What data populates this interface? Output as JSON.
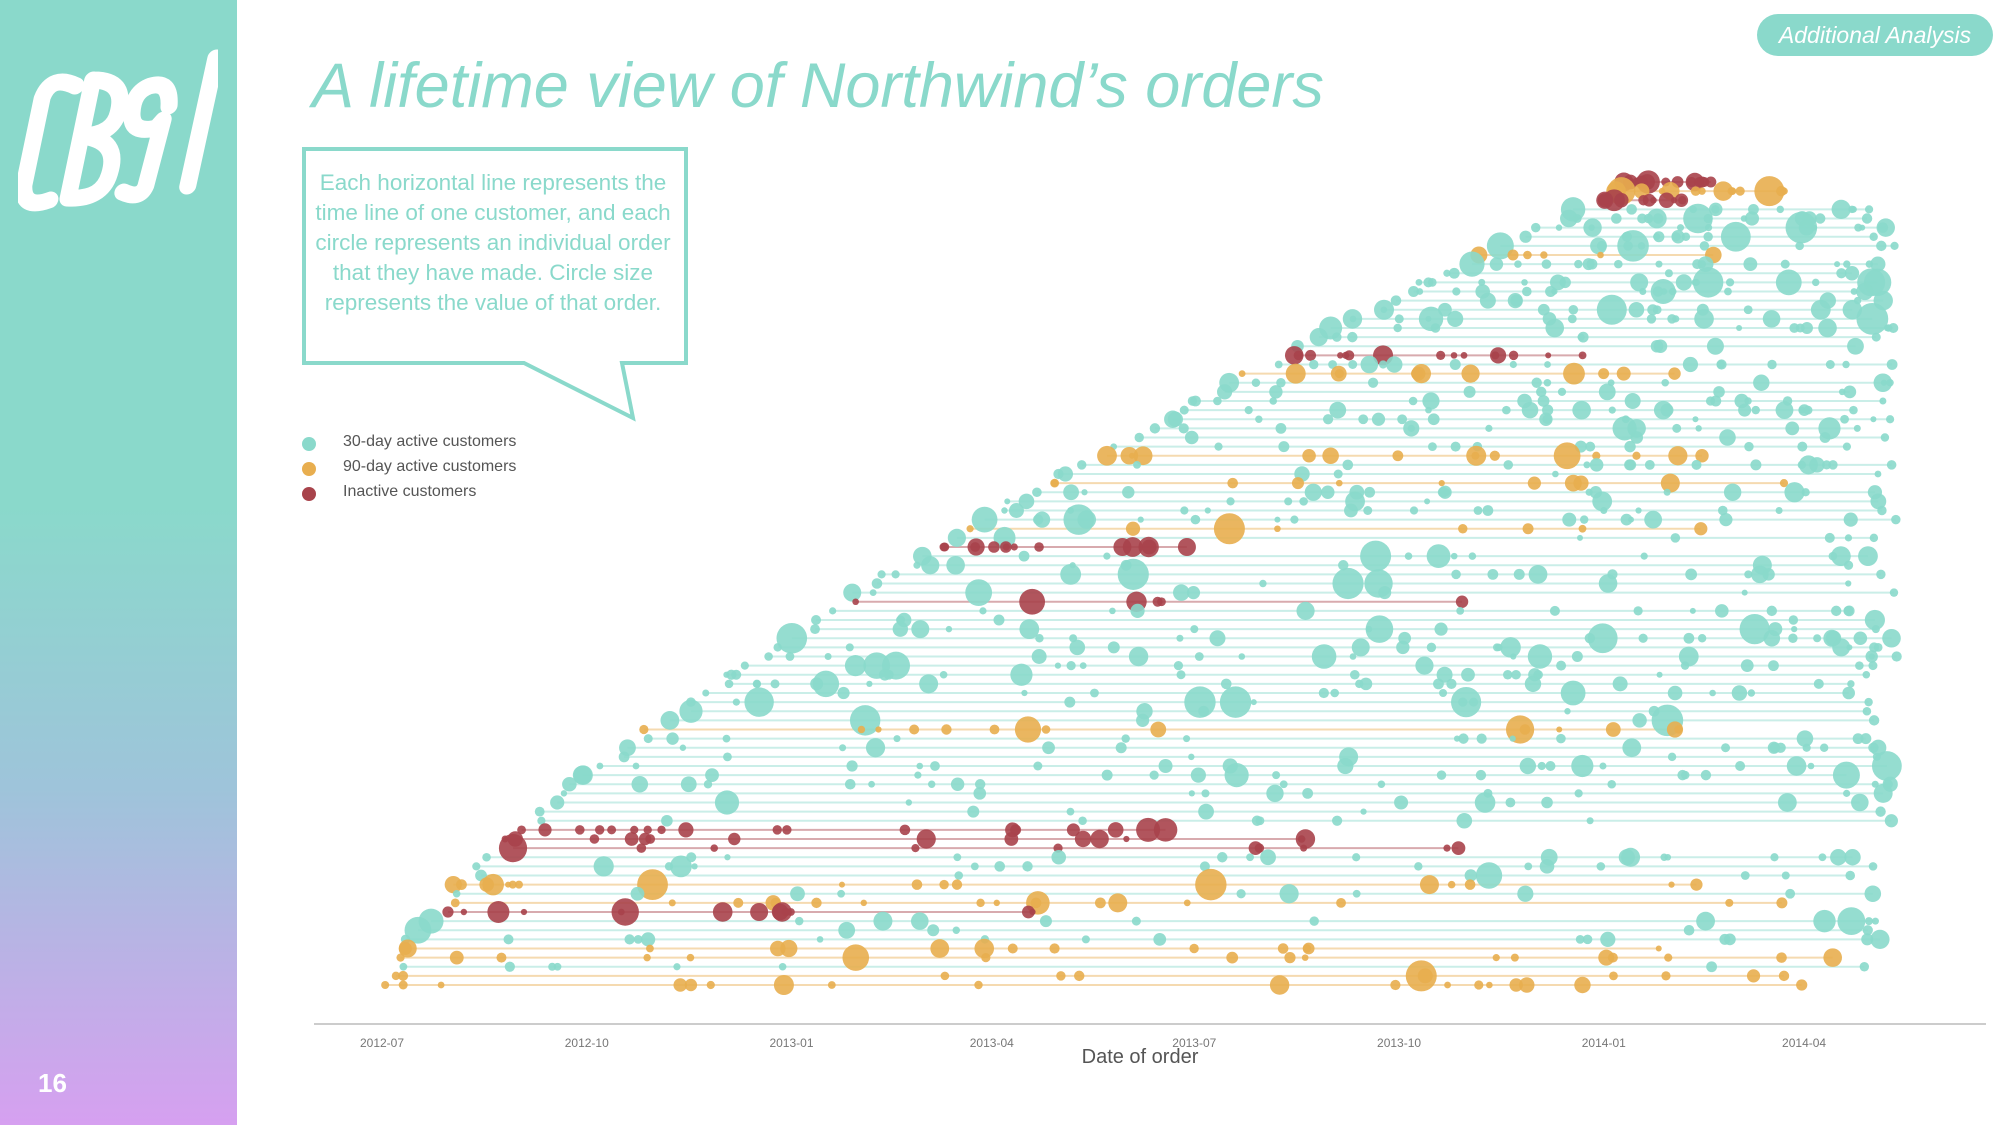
{
  "slide": {
    "logo_text": "CB91",
    "page_number": "16",
    "badge": "Additional Analysis",
    "title": "A lifetime view of Northwind’s orders",
    "callout": "Each horizontal line represents the time line of one customer, and each circle represents an individual order that they have made. Circle size represents the value of that order."
  },
  "colors": {
    "accent": "#8ad9cb",
    "active_30": "#8ad9cb",
    "active_90": "#e8ae4f",
    "inactive": "#a8434b",
    "axis": "#cccccc",
    "text": "#555555"
  },
  "chart_data": {
    "type": "scatter",
    "title": "",
    "xlabel": "Date of order",
    "ylabel": "",
    "x_axis": "date",
    "x_ticks": [
      "2012-07",
      "2012-10",
      "2013-01",
      "2013-04",
      "2013-07",
      "2013-10",
      "2014-01",
      "2014-04"
    ],
    "xlim": [
      "2012-07-01",
      "2014-05-15"
    ],
    "legend": {
      "placement": "left",
      "entries": [
        {
          "label": "30-day active customers",
          "status": "active_30"
        },
        {
          "label": "90-day active customers",
          "status": "active_90"
        },
        {
          "label": "Inactive customers",
          "status": "inactive"
        }
      ]
    },
    "customer_count": 89,
    "grid": false,
    "note_encoding": "size = order value",
    "customers_sample": [
      {
        "status": "active_90",
        "first_order": "2014-01-10",
        "last_order": "2014-04-20"
      },
      {
        "status": "active_30",
        "first_order": "2013-07-08",
        "last_order": "2014-05-05"
      },
      {
        "status": "inactive",
        "first_order": "2013-06-05",
        "last_order": "2014-01-05"
      },
      {
        "status": "active_30",
        "first_order": "2012-07-04",
        "last_order": "2014-05-05"
      },
      {
        "status": "inactive",
        "first_order": "2012-07-10",
        "last_order": "2013-11-30"
      }
    ]
  }
}
